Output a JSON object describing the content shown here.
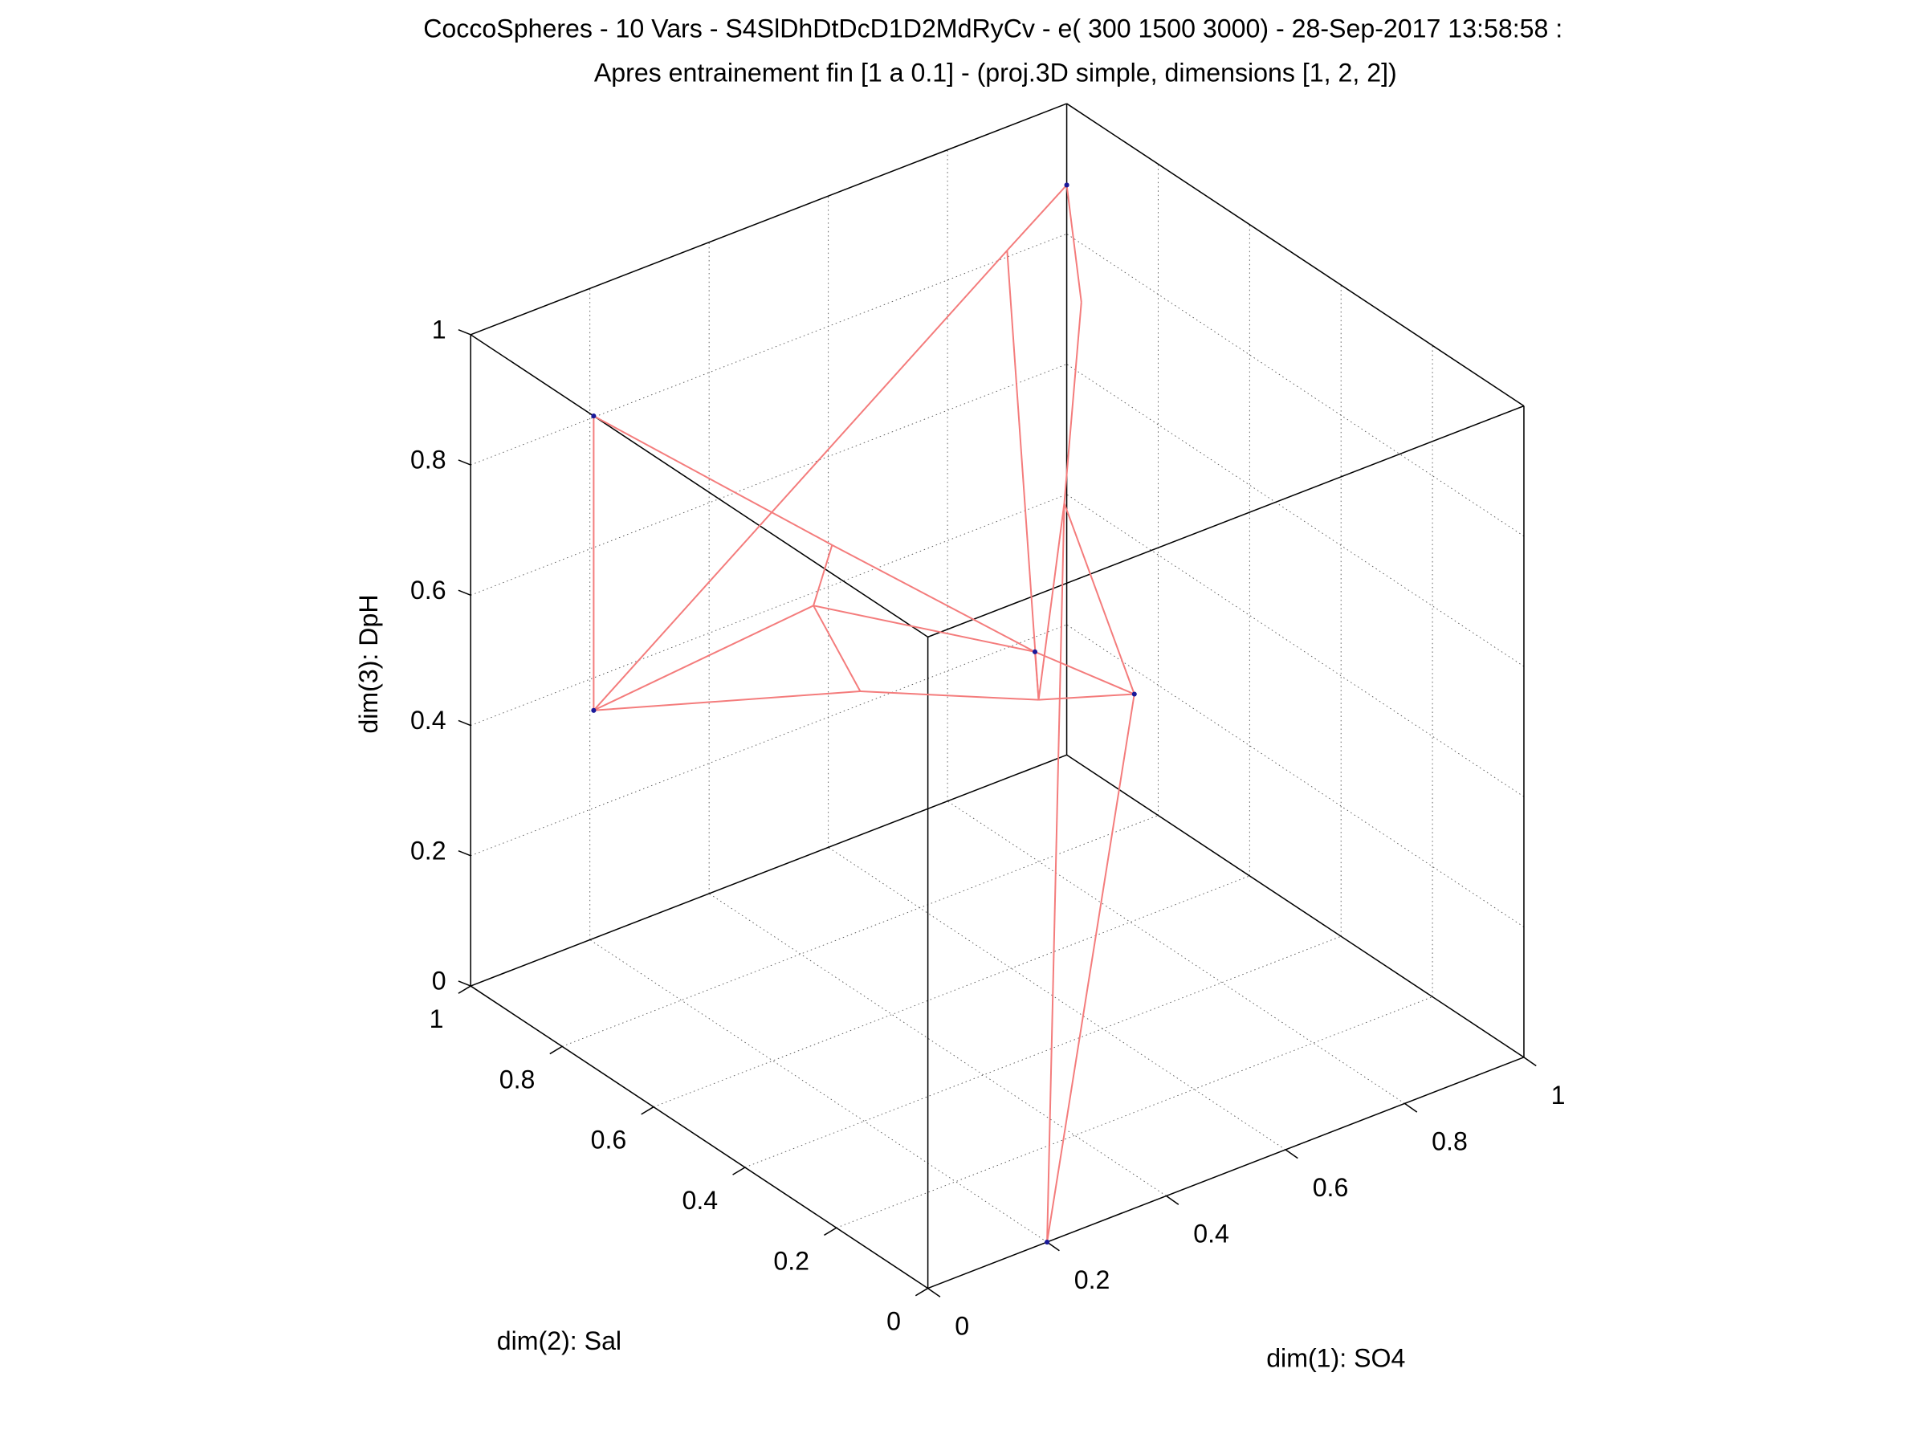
{
  "chart_data": {
    "type": "scatter3d",
    "title": "CoccoSpheres - 10 Vars - S4SlDhDtDcD1D2MdRyCv - e( 300 1500 3000) - 28-Sep-2017 13:58:58 :",
    "subtitle": "Apres entrainement fin [1 a 0.1] - (proj.3D simple, dimensions [1, 2, 2])",
    "xlabel": "dim(1): SO4",
    "ylabel": "dim(2): Sal",
    "zlabel": "dim(3): DpH",
    "xlim": [
      0,
      1
    ],
    "ylim": [
      0,
      1
    ],
    "zlim": [
      0,
      1
    ],
    "xticks": [
      "0",
      "0.2",
      "0.4",
      "0.6",
      "0.8",
      "1"
    ],
    "yticks": [
      "0",
      "0.2",
      "0.4",
      "0.6",
      "0.8",
      "1"
    ],
    "zticks": [
      "0",
      "0.2",
      "0.4",
      "0.6",
      "0.8",
      "1"
    ],
    "grid": true,
    "edge_color": "#f47c7c",
    "node_color": "#1a1a9a",
    "box_color": "#000000",
    "nodes": [
      {
        "id": "A",
        "x": 1.0,
        "y": 1.0,
        "z": 0.875,
        "marked": true
      },
      {
        "id": "B",
        "x": 0.9,
        "y": 1.0,
        "z": 0.81,
        "marked": false
      },
      {
        "id": "C",
        "x": 1.0,
        "y": 0.968,
        "z": 0.71,
        "marked": false
      },
      {
        "id": "D",
        "x": 0.0,
        "y": 0.731,
        "z": 1.0,
        "marked": true
      },
      {
        "id": "E",
        "x": 0.0,
        "y": 0.731,
        "z": 0.548,
        "marked": true
      },
      {
        "id": "F",
        "x": 0.15,
        "y": 0.405,
        "z": 0.9,
        "marked": false
      },
      {
        "id": "G",
        "x": 0.2,
        "y": 0.511,
        "z": 0.74,
        "marked": false
      },
      {
        "id": "H",
        "x": 0.3,
        "y": 0.539,
        "z": 0.56,
        "marked": false
      },
      {
        "id": "I",
        "x": 0.6,
        "y": 0.548,
        "z": 0.51,
        "marked": true
      },
      {
        "id": "J",
        "x": 0.7,
        "y": 0.461,
        "z": 0.45,
        "marked": true
      },
      {
        "id": "K",
        "x": 0.6,
        "y": 0.54,
        "z": 0.44,
        "marked": false
      },
      {
        "id": "L",
        "x": 0.9,
        "y": 0.875,
        "z": 0.48,
        "marked": false
      },
      {
        "id": "M",
        "x": 0.2,
        "y": 0.0,
        "z": 0.0,
        "marked": true
      }
    ],
    "edges": [
      [
        "A",
        "B"
      ],
      [
        "B",
        "E"
      ],
      [
        "A",
        "C"
      ],
      [
        "B",
        "K"
      ],
      [
        "C",
        "L"
      ],
      [
        "L",
        "K"
      ],
      [
        "L",
        "J"
      ],
      [
        "L",
        "M"
      ],
      [
        "J",
        "M"
      ],
      [
        "D",
        "E"
      ],
      [
        "D",
        "F"
      ],
      [
        "F",
        "I"
      ],
      [
        "F",
        "G"
      ],
      [
        "G",
        "E"
      ],
      [
        "G",
        "H"
      ],
      [
        "G",
        "I"
      ],
      [
        "E",
        "H"
      ],
      [
        "H",
        "K"
      ],
      [
        "K",
        "J"
      ],
      [
        "I",
        "J"
      ],
      [
        "I",
        "K"
      ]
    ]
  }
}
